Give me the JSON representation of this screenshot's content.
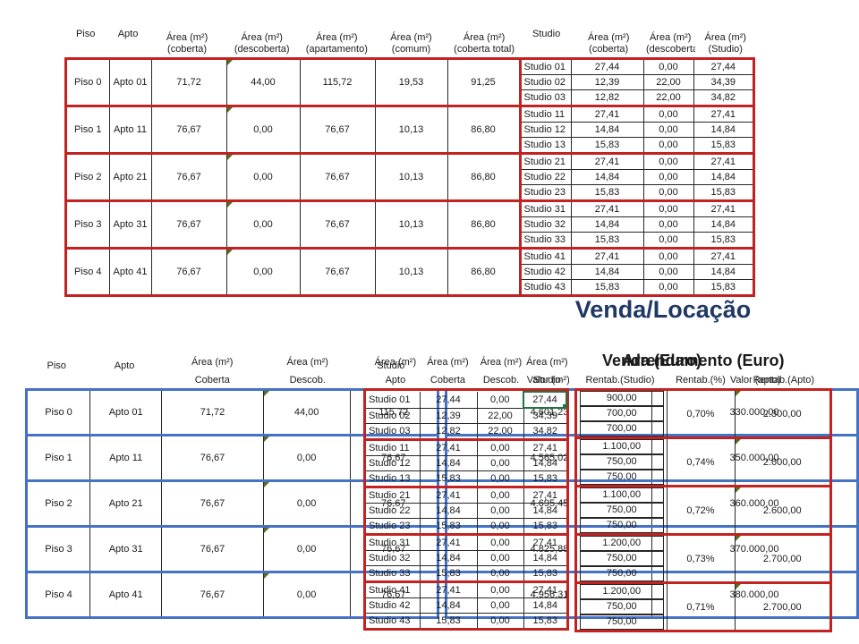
{
  "section_title": "Venda/Locação",
  "colors": {
    "red": "#c32222",
    "blue": "#4472c4",
    "navy": "#1f3864",
    "green": "#217346",
    "line": "#262626",
    "tri": "#55701c"
  },
  "top_table": {
    "headers": [
      {
        "lines": [
          "Piso"
        ],
        "mid": true
      },
      {
        "lines": [
          "Apto"
        ],
        "mid": true
      },
      {
        "lines": [
          "Área (m²)",
          "(coberta)"
        ]
      },
      {
        "lines": [
          "Área (m²)",
          "(descoberta)"
        ]
      },
      {
        "lines": [
          "Área (m²)",
          "(apartamento)"
        ]
      },
      {
        "lines": [
          "Área (m²)",
          "(comum)"
        ]
      },
      {
        "lines": [
          "Área (m²)",
          "(coberta total)"
        ]
      },
      {
        "lines": [
          "Studio"
        ],
        "mid": true
      },
      {
        "lines": [
          "Área (m²)",
          "(coberta)"
        ]
      },
      {
        "lines": [
          "Área (m²)",
          "(descoberta)"
        ]
      },
      {
        "lines": [
          "Área (m²)",
          "(Studio)"
        ]
      }
    ],
    "groups": [
      {
        "piso": "Piso 0",
        "apto": "Apto 01",
        "coberta": "71,72",
        "descoberta": "44,00",
        "apartamento": "115,72",
        "comum": "19,53",
        "coberta_total": "91,25",
        "studios": [
          [
            "Studio 01",
            "27,44",
            "0,00",
            "27,44"
          ],
          [
            "Studio 02",
            "12,39",
            "22,00",
            "34,39"
          ],
          [
            "Studio 03",
            "12,82",
            "22,00",
            "34,82"
          ]
        ]
      },
      {
        "piso": "Piso 1",
        "apto": "Apto 11",
        "coberta": "76,67",
        "descoberta": "0,00",
        "apartamento": "76,67",
        "comum": "10,13",
        "coberta_total": "86,80",
        "studios": [
          [
            "Studio 11",
            "27,41",
            "0,00",
            "27,41"
          ],
          [
            "Studio 12",
            "14,84",
            "0,00",
            "14,84"
          ],
          [
            "Studio 13",
            "15,83",
            "0,00",
            "15,83"
          ]
        ]
      },
      {
        "piso": "Piso 2",
        "apto": "Apto 21",
        "coberta": "76,67",
        "descoberta": "0,00",
        "apartamento": "76,67",
        "comum": "10,13",
        "coberta_total": "86,80",
        "studios": [
          [
            "Studio 21",
            "27,41",
            "0,00",
            "27,41"
          ],
          [
            "Studio 22",
            "14,84",
            "0,00",
            "14,84"
          ],
          [
            "Studio 23",
            "15,83",
            "0,00",
            "15,83"
          ]
        ]
      },
      {
        "piso": "Piso 3",
        "apto": "Apto 31",
        "coberta": "76,67",
        "descoberta": "0,00",
        "apartamento": "76,67",
        "comum": "10,13",
        "coberta_total": "86,80",
        "studios": [
          [
            "Studio 31",
            "27,41",
            "0,00",
            "27,41"
          ],
          [
            "Studio 32",
            "14,84",
            "0,00",
            "14,84"
          ],
          [
            "Studio 33",
            "15,83",
            "0,00",
            "15,83"
          ]
        ]
      },
      {
        "piso": "Piso 4",
        "apto": "Apto 41",
        "coberta": "76,67",
        "descoberta": "0,00",
        "apartamento": "76,67",
        "comum": "10,13",
        "coberta_total": "86,80",
        "studios": [
          [
            "Studio 41",
            "27,41",
            "0,00",
            "27,41"
          ],
          [
            "Studio 42",
            "14,84",
            "0,00",
            "14,84"
          ],
          [
            "Studio 43",
            "15,83",
            "0,00",
            "15,83"
          ]
        ]
      }
    ]
  },
  "bottom_left": {
    "piso_h": "Piso",
    "apto_h": "Apto",
    "area_h": "Área (m²)",
    "sub": [
      "Coberta",
      "Descob.",
      "Apto"
    ],
    "venda_title": "Venda (Euro)",
    "venda_sub": [
      "Valor (m²)",
      "Valor (apto)"
    ],
    "rows": [
      {
        "piso": "Piso 0",
        "apto": "Apto 01",
        "coberta": "71,72",
        "descob": "44,00",
        "area_apto": "115,72",
        "valor_m2": "4.601,23",
        "valor_apto": "330.000,00"
      },
      {
        "piso": "Piso 1",
        "apto": "Apto 11",
        "coberta": "76,67",
        "descob": "0,00",
        "area_apto": "76,67",
        "valor_m2": "4.565,02",
        "valor_apto": "350.000,00"
      },
      {
        "piso": "Piso 2",
        "apto": "Apto 21",
        "coberta": "76,67",
        "descob": "0,00",
        "area_apto": "76,67",
        "valor_m2": "4.695,45",
        "valor_apto": "360.000,00"
      },
      {
        "piso": "Piso 3",
        "apto": "Apto 31",
        "coberta": "76,67",
        "descob": "0,00",
        "area_apto": "76,67",
        "valor_m2": "4.825,88",
        "valor_apto": "370.000,00"
      },
      {
        "piso": "Piso 4",
        "apto": "Apto 41",
        "coberta": "76,67",
        "descob": "0,00",
        "area_apto": "76,67",
        "valor_m2": "4.956,31",
        "valor_apto": "380.000,00"
      }
    ]
  },
  "bottom_middle": {
    "studio_h": "Studio",
    "area_h": "Área (m²)",
    "sub": [
      "Coberta",
      "Descob.",
      "Studio"
    ],
    "groups": [
      {
        "rows": [
          [
            "Studio 01",
            "27,44",
            "0,00",
            "27,44"
          ],
          [
            "Studio 02",
            "12,39",
            "22,00",
            "34,39"
          ],
          [
            "Studio 03",
            "12,82",
            "22,00",
            "34,82"
          ]
        ]
      },
      {
        "rows": [
          [
            "Studio 11",
            "27,41",
            "0,00",
            "27,41"
          ],
          [
            "Studio 12",
            "14,84",
            "0,00",
            "14,84"
          ],
          [
            "Studio 13",
            "15,83",
            "0,00",
            "15,83"
          ]
        ]
      },
      {
        "rows": [
          [
            "Studio 21",
            "27,41",
            "0,00",
            "27,41"
          ],
          [
            "Studio 22",
            "14,84",
            "0,00",
            "14,84"
          ],
          [
            "Studio 23",
            "15,83",
            "0,00",
            "15,83"
          ]
        ]
      },
      {
        "rows": [
          [
            "Studio 31",
            "27,41",
            "0,00",
            "27,41"
          ],
          [
            "Studio 32",
            "14,84",
            "0,00",
            "14,84"
          ],
          [
            "Studio 33",
            "15,83",
            "0,00",
            "15,83"
          ]
        ]
      },
      {
        "rows": [
          [
            "Studio 41",
            "27,41",
            "0,00",
            "27,41"
          ],
          [
            "Studio 42",
            "14,84",
            "0,00",
            "14,84"
          ],
          [
            "Studio 43",
            "15,83",
            "0,00",
            "15,83"
          ]
        ]
      }
    ]
  },
  "bottom_right": {
    "title": "Arrendamento (Euro)",
    "headers": [
      "Rentab.(Studio)",
      "Rentab.(%)",
      "Rentab.(Apto)"
    ],
    "groups": [
      {
        "studios": [
          "900,00",
          "700,00",
          "700,00"
        ],
        "pct": "0,70%",
        "apto": "2.300,00"
      },
      {
        "studios": [
          "1.100,00",
          "750,00",
          "750,00"
        ],
        "pct": "0,74%",
        "apto": "2.600,00"
      },
      {
        "studios": [
          "1.100,00",
          "750,00",
          "750,00"
        ],
        "pct": "0,72%",
        "apto": "2.600,00"
      },
      {
        "studios": [
          "1.200,00",
          "750,00",
          "750,00"
        ],
        "pct": "0,73%",
        "apto": "2.700,00"
      },
      {
        "studios": [
          "1.200,00",
          "750,00",
          "750,00"
        ],
        "pct": "0,71%",
        "apto": "2.700,00"
      }
    ]
  }
}
